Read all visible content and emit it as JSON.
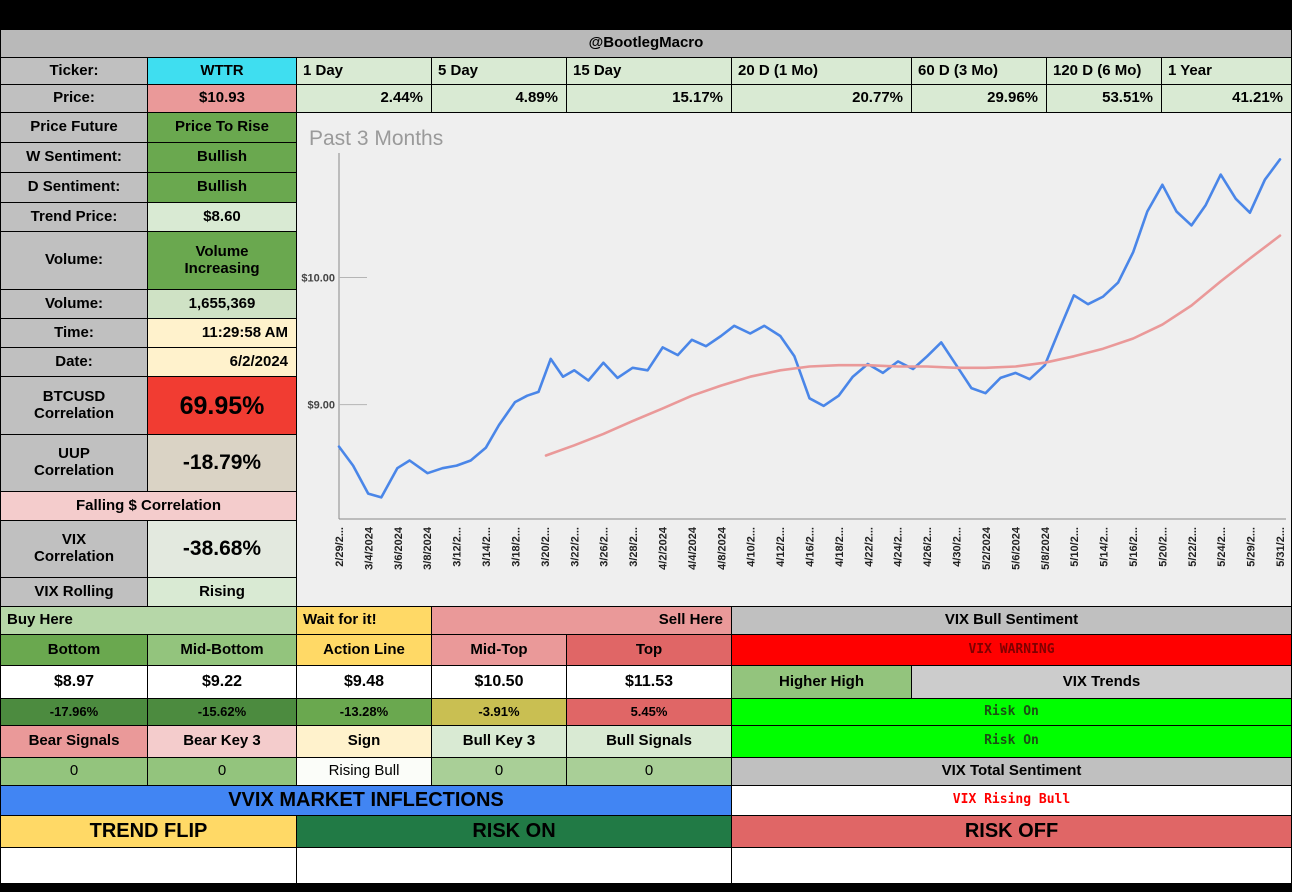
{
  "header": {
    "title": "@BootlegMacro"
  },
  "top": {
    "ticker_label": "Ticker:",
    "ticker_value": "WTTR",
    "price_label": "Price:",
    "price_value": "$10.93",
    "timeframes": [
      {
        "label": "1 Day",
        "change": "2.44%"
      },
      {
        "label": "5 Day",
        "change": "4.89%"
      },
      {
        "label": "15 Day",
        "change": "15.17%"
      },
      {
        "label": "20 D (1 Mo)",
        "change": "20.77%"
      },
      {
        "label": "60 D (3 Mo)",
        "change": "29.96%"
      },
      {
        "label": "120 D (6 Mo)",
        "change": "53.51%"
      },
      {
        "label": "1 Year",
        "change": "41.21%"
      }
    ]
  },
  "left_panel": {
    "price_future": {
      "label": "Price Future",
      "value": "Price To Rise"
    },
    "w_sentiment": {
      "label": "W Sentiment:",
      "value": "Bullish"
    },
    "d_sentiment": {
      "label": "D Sentiment:",
      "value": "Bullish"
    },
    "trend_price": {
      "label": "Trend Price:",
      "value": "$8.60"
    },
    "volume_status": {
      "label": "Volume:",
      "value": "Volume Increasing"
    },
    "volume": {
      "label": "Volume:",
      "value": "1,655,369"
    },
    "time": {
      "label": "Time:",
      "value": "11:29:58 AM"
    },
    "date": {
      "label": "Date:",
      "value": "6/2/2024"
    },
    "btc_corr": {
      "label": "BTCUSD Correlation",
      "value": "69.95%"
    },
    "uup_corr": {
      "label": "UUP Correlation",
      "value": "-18.79%"
    },
    "falling_corr": {
      "label": "Falling $ Correlation"
    },
    "vix_corr": {
      "label": "VIX Correlation",
      "value": "-38.68%"
    },
    "vix_rolling": {
      "label": "VIX Rolling",
      "value": "Rising"
    }
  },
  "levels": {
    "buy_here": "Buy Here",
    "wait": "Wait for it!",
    "sell_here": "Sell Here",
    "bottom": {
      "label": "Bottom",
      "price": "$8.97",
      "pct": "-17.96%"
    },
    "mid_bottom": {
      "label": "Mid-Bottom",
      "price": "$9.22",
      "pct": "-15.62%"
    },
    "action_line": {
      "label": "Action Line",
      "price": "$9.48",
      "pct": "-13.28%"
    },
    "mid_top": {
      "label": "Mid-Top",
      "price": "$10.50",
      "pct": "-3.91%"
    },
    "top": {
      "label": "Top",
      "price": "$11.53",
      "pct": "5.45%"
    }
  },
  "signals": {
    "bear_signals": {
      "label": "Bear Signals",
      "value": "0"
    },
    "bear_key": {
      "label": "Bear Key 3",
      "value": "0"
    },
    "sign": {
      "label": "Sign",
      "value": "Rising Bull"
    },
    "bull_key": {
      "label": "Bull Key 3",
      "value": "0"
    },
    "bull_signals": {
      "label": "Bull Signals",
      "value": "0"
    }
  },
  "vix_panel": {
    "title": "VIX Bull Sentiment",
    "warning": "VIX WARNING",
    "higher_high": "Higher High",
    "trends_title": "VIX Trends",
    "trend_1": "Risk On",
    "trend_2": "Risk On",
    "total_title": "VIX Total Sentiment",
    "total_value": "VIX Rising Bull",
    "risk_off": "RISK OFF"
  },
  "banners": {
    "vvix": "VVIX MARKET INFLECTIONS",
    "trend_flip": "TREND FLIP",
    "risk_on": "RISK ON"
  },
  "colors": {
    "ticker_cyan": "#3fdef0",
    "price_pink": "#ea9999",
    "light_green": "#d9ead3",
    "medium_green": "#93c47d",
    "green": "#6aa84f",
    "dark_green_banner": "#217a45",
    "gold": "#ffd966",
    "warning_red": "#ff0000",
    "signal_green": "#00ff00",
    "vvix_blue": "#4185f3",
    "risk_off_red": "#e06666",
    "btc_red": "#f13c32",
    "header_gray": "#c0c0c0"
  },
  "chart_data": {
    "type": "line",
    "title": "Past 3 Months",
    "ylim": [
      8.1,
      10.98
    ],
    "grid": false,
    "y_ticks": [
      {
        "label": "$10.00",
        "value": 10
      },
      {
        "label": "$9.00",
        "value": 9
      }
    ],
    "x_labels": [
      "2/29/2...",
      "3/4/2024",
      "3/6/2024",
      "3/8/2024",
      "3/12/2...",
      "3/14/2...",
      "3/18/2...",
      "3/20/2...",
      "3/22/2...",
      "3/26/2...",
      "3/28/2...",
      "4/2/2024",
      "4/4/2024",
      "4/8/2024",
      "4/10/2...",
      "4/12/2...",
      "4/16/2...",
      "4/18/2...",
      "4/22/2...",
      "4/24/2...",
      "4/26/2...",
      "4/30/2...",
      "5/2/2024",
      "5/6/2024",
      "5/8/2024",
      "5/10/2...",
      "5/14/2...",
      "5/16/2...",
      "5/20/2...",
      "5/22/2...",
      "5/24/2...",
      "5/29/2...",
      "5/31/2..."
    ],
    "series": [
      {
        "name": "price",
        "color": "#4a86e8",
        "width": 2.6,
        "points": [
          [
            0.0,
            8.67
          ],
          [
            0.015,
            8.52
          ],
          [
            0.031,
            8.3
          ],
          [
            0.045,
            8.27
          ],
          [
            0.062,
            8.5
          ],
          [
            0.075,
            8.56
          ],
          [
            0.094,
            8.46
          ],
          [
            0.11,
            8.5
          ],
          [
            0.125,
            8.52
          ],
          [
            0.14,
            8.56
          ],
          [
            0.156,
            8.66
          ],
          [
            0.17,
            8.84
          ],
          [
            0.187,
            9.02
          ],
          [
            0.2,
            9.07
          ],
          [
            0.212,
            9.1
          ],
          [
            0.225,
            9.36
          ],
          [
            0.238,
            9.22
          ],
          [
            0.25,
            9.27
          ],
          [
            0.265,
            9.19
          ],
          [
            0.281,
            9.33
          ],
          [
            0.296,
            9.21
          ],
          [
            0.312,
            9.29
          ],
          [
            0.328,
            9.27
          ],
          [
            0.344,
            9.45
          ],
          [
            0.36,
            9.39
          ],
          [
            0.375,
            9.51
          ],
          [
            0.39,
            9.46
          ],
          [
            0.406,
            9.54
          ],
          [
            0.42,
            9.62
          ],
          [
            0.437,
            9.56
          ],
          [
            0.452,
            9.62
          ],
          [
            0.469,
            9.54
          ],
          [
            0.484,
            9.38
          ],
          [
            0.5,
            9.05
          ],
          [
            0.515,
            8.99
          ],
          [
            0.531,
            9.07
          ],
          [
            0.546,
            9.22
          ],
          [
            0.562,
            9.32
          ],
          [
            0.578,
            9.25
          ],
          [
            0.594,
            9.34
          ],
          [
            0.61,
            9.28
          ],
          [
            0.625,
            9.38
          ],
          [
            0.64,
            9.49
          ],
          [
            0.656,
            9.31
          ],
          [
            0.672,
            9.13
          ],
          [
            0.687,
            9.09
          ],
          [
            0.703,
            9.21
          ],
          [
            0.719,
            9.25
          ],
          [
            0.734,
            9.2
          ],
          [
            0.75,
            9.31
          ],
          [
            0.765,
            9.58
          ],
          [
            0.781,
            9.86
          ],
          [
            0.796,
            9.79
          ],
          [
            0.812,
            9.85
          ],
          [
            0.828,
            9.96
          ],
          [
            0.844,
            10.2
          ],
          [
            0.859,
            10.52
          ],
          [
            0.875,
            10.73
          ],
          [
            0.89,
            10.52
          ],
          [
            0.906,
            10.41
          ],
          [
            0.921,
            10.57
          ],
          [
            0.937,
            10.81
          ],
          [
            0.953,
            10.62
          ],
          [
            0.968,
            10.51
          ],
          [
            0.984,
            10.77
          ],
          [
            1.0,
            10.93
          ]
        ]
      },
      {
        "name": "trend",
        "color": "#ea9999",
        "width": 2.6,
        "points": [
          [
            0.22,
            8.6
          ],
          [
            0.25,
            8.68
          ],
          [
            0.281,
            8.77
          ],
          [
            0.312,
            8.87
          ],
          [
            0.344,
            8.97
          ],
          [
            0.375,
            9.07
          ],
          [
            0.406,
            9.15
          ],
          [
            0.437,
            9.22
          ],
          [
            0.469,
            9.27
          ],
          [
            0.5,
            9.3
          ],
          [
            0.531,
            9.31
          ],
          [
            0.562,
            9.31
          ],
          [
            0.594,
            9.3
          ],
          [
            0.625,
            9.3
          ],
          [
            0.656,
            9.29
          ],
          [
            0.687,
            9.29
          ],
          [
            0.719,
            9.3
          ],
          [
            0.75,
            9.33
          ],
          [
            0.781,
            9.38
          ],
          [
            0.812,
            9.44
          ],
          [
            0.844,
            9.52
          ],
          [
            0.875,
            9.63
          ],
          [
            0.906,
            9.78
          ],
          [
            0.937,
            9.97
          ],
          [
            0.968,
            10.15
          ],
          [
            1.0,
            10.33
          ]
        ]
      }
    ]
  }
}
